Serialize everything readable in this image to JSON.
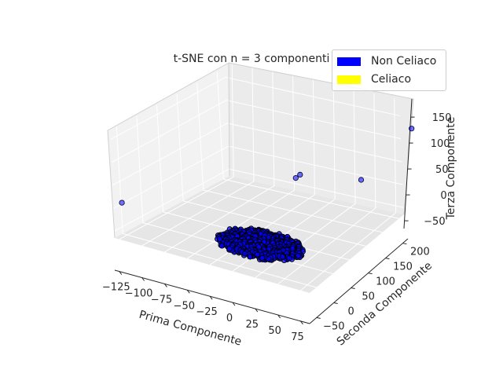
{
  "chart_data": {
    "type": "scatter",
    "title": "t-SNE con n = 3 componenti",
    "xlabel": "Prima Componente",
    "ylabel": "Seconda Componente",
    "zlabel": "Terza Componente",
    "x_ticks": [
      "−125",
      "−100",
      "−75",
      "−50",
      "−25",
      "0",
      "25",
      "50",
      "75"
    ],
    "y_ticks": [
      "−50",
      "0",
      "50",
      "100",
      "150",
      "200"
    ],
    "z_ticks": [
      "−50",
      "0",
      "50",
      "100",
      "150"
    ],
    "xlim": [
      -130,
      85
    ],
    "ylim": [
      -70,
      215
    ],
    "zlim": [
      -65,
      185
    ],
    "grid": true,
    "legend_position": "top-right",
    "series": [
      {
        "name": "Non Celiaco",
        "color": "#0000ff",
        "cluster": {
          "center": [
            0,
            0,
            -40
          ],
          "radius": [
            45,
            45,
            15
          ],
          "count": 900
        },
        "points": [
          [
            -125,
            -60,
            10
          ],
          [
            20,
            60,
            95
          ],
          [
            15,
            60,
            85
          ],
          [
            65,
            110,
            85
          ],
          [
            80,
            205,
            160
          ]
        ]
      },
      {
        "name": "Celiaco",
        "color": "#ffff00",
        "points": []
      }
    ]
  }
}
